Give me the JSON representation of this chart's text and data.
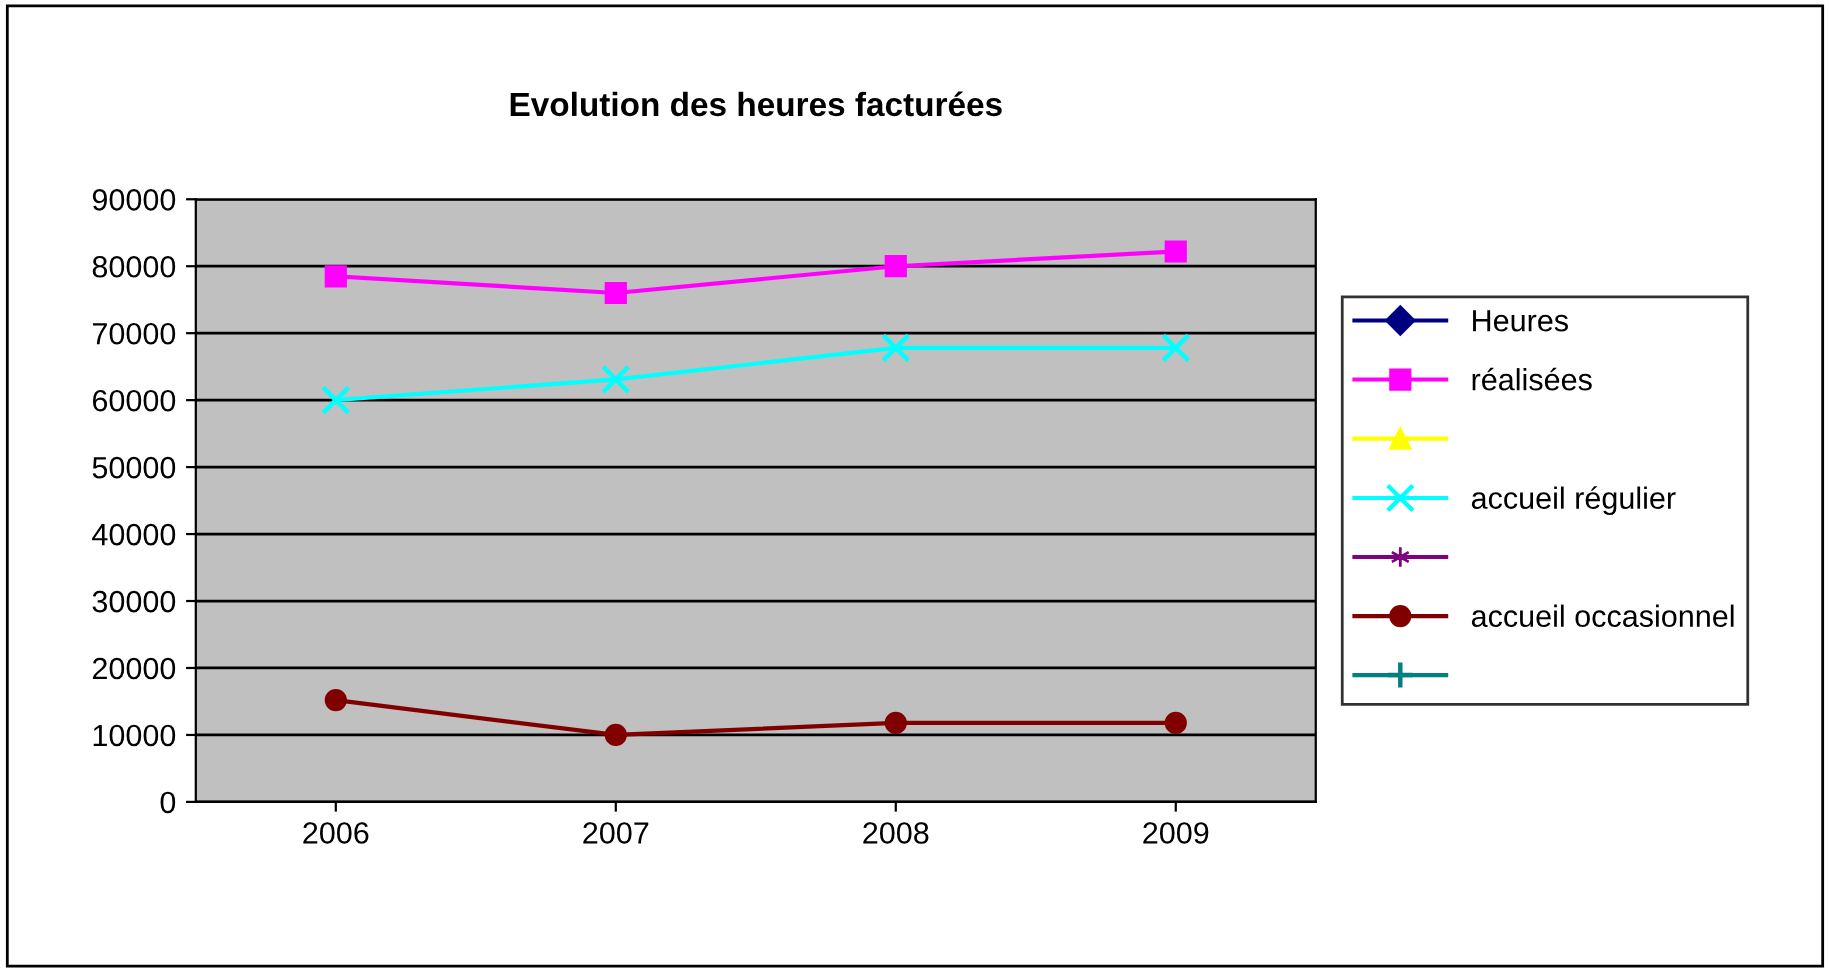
{
  "chart_data": {
    "type": "line",
    "title": "Evolution des heures facturées",
    "categories": [
      "2006",
      "2007",
      "2008",
      "2009"
    ],
    "series": [
      {
        "name": "Heures",
        "color": "#000080",
        "marker": "diamond",
        "values": [
          null,
          null,
          null,
          null
        ]
      },
      {
        "name": "réalisées",
        "color": "#ff00ff",
        "marker": "square",
        "values": [
          78500,
          76000,
          80000,
          82200
        ]
      },
      {
        "color": "#ffff00",
        "marker": "triangle",
        "values": [
          null,
          null,
          null,
          null
        ]
      },
      {
        "name": "accueil régulier",
        "color": "#00ffff",
        "marker": "cross",
        "values": [
          60000,
          63100,
          67800,
          67800
        ]
      },
      {
        "color": "#800080",
        "marker": "star",
        "values": [
          null,
          null,
          null,
          null
        ]
      },
      {
        "name": "accueil occasionnel",
        "color": "#800000",
        "marker": "circle",
        "values": [
          15200,
          10000,
          11800,
          11800
        ]
      },
      {
        "color": "#008080",
        "marker": "plus",
        "values": [
          null,
          null,
          null,
          null
        ]
      }
    ],
    "ylim": [
      0,
      90000
    ],
    "yticks": [
      0,
      10000,
      20000,
      30000,
      40000,
      50000,
      60000,
      70000,
      80000,
      90000
    ],
    "grid": "y",
    "legend": "right"
  }
}
